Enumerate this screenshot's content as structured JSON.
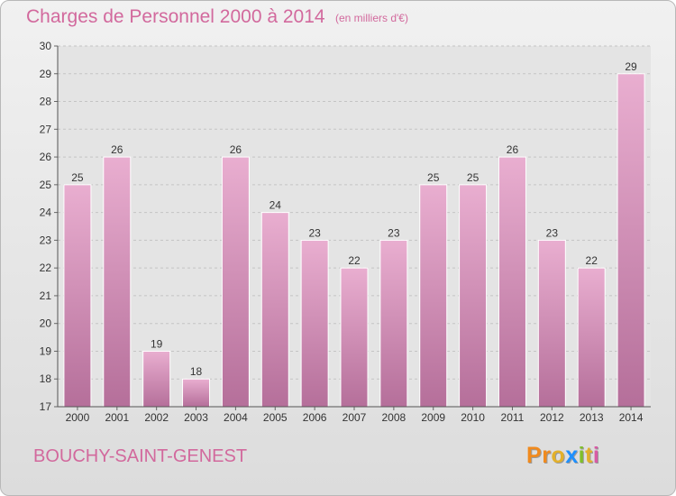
{
  "header": {
    "title": "Charges de Personnel 2000 à 2014",
    "subtitle": "(en milliers d'€)"
  },
  "footer": {
    "commune": "BOUCHY-SAINT-GENEST",
    "logo_text": "Proxiti"
  },
  "colors": {
    "bar_light": "#e9aed0",
    "bar_dark": "#b56f9a",
    "text_accent": "#d2699d",
    "logo_letters": [
      "#f08a1e",
      "#f08a1e",
      "#e3b02a",
      "#1e90ff",
      "#7fbf2a",
      "#e3b02a",
      "#d85aa5"
    ]
  },
  "chart_data": {
    "type": "bar",
    "title": "Charges de Personnel 2000 à 2014",
    "subtitle": "(en milliers d'€)",
    "categories": [
      "2000",
      "2001",
      "2002",
      "2003",
      "2004",
      "2005",
      "2006",
      "2007",
      "2008",
      "2009",
      "2010",
      "2011",
      "2012",
      "2013",
      "2014"
    ],
    "values": [
      25,
      26,
      19,
      18,
      26,
      24,
      23,
      22,
      23,
      25,
      25,
      26,
      23,
      22,
      29
    ],
    "ylim": [
      17,
      30
    ],
    "yticks": [
      17,
      18,
      19,
      20,
      21,
      22,
      23,
      24,
      25,
      26,
      27,
      28,
      29,
      30
    ],
    "grid": true,
    "data_labels": true,
    "xlabel": "",
    "ylabel": ""
  }
}
